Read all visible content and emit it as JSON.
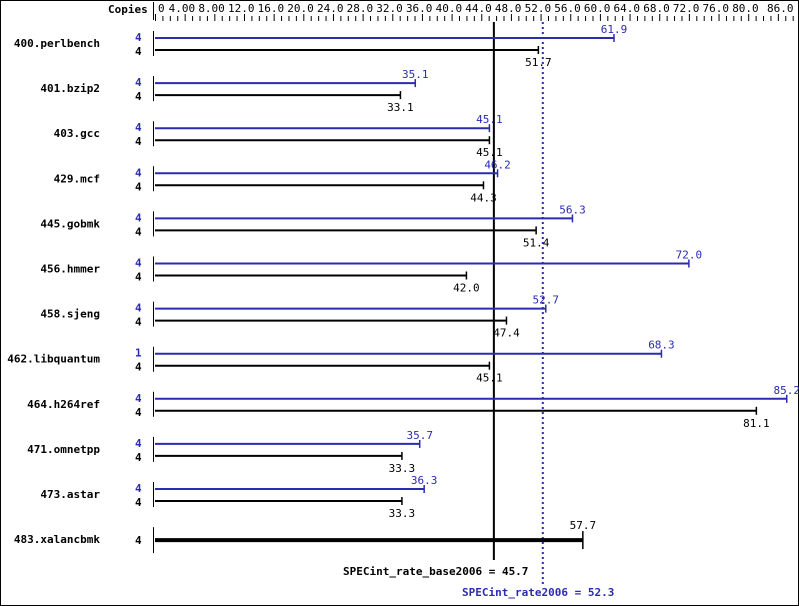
{
  "colors": {
    "peak": "#2b2bb0",
    "base": "#000000",
    "background": "#ffffff"
  },
  "chart_data": {
    "type": "bar",
    "orientation": "horizontal",
    "axis_title": "Copies",
    "xlim": [
      0,
      86.0
    ],
    "tick_labels": [
      "0",
      "4.00",
      "8.00",
      "12.0",
      "16.0",
      "20.0",
      "24.0",
      "28.0",
      "32.0",
      "36.0",
      "40.0",
      "44.0",
      "48.0",
      "52.0",
      "56.0",
      "60.0",
      "64.0",
      "68.0",
      "72.0",
      "76.0",
      "80.0",
      "86.0"
    ],
    "benchmarks": [
      {
        "name": "400.perlbench",
        "peak_copies": "4",
        "peak": 61.9,
        "base_copies": "4",
        "base": 51.7
      },
      {
        "name": "401.bzip2",
        "peak_copies": "4",
        "peak": 35.1,
        "base_copies": "4",
        "base": 33.1
      },
      {
        "name": "403.gcc",
        "peak_copies": "4",
        "peak": 45.1,
        "base_copies": "4",
        "base": 45.1
      },
      {
        "name": "429.mcf",
        "peak_copies": "4",
        "peak": 46.2,
        "base_copies": "4",
        "base": 44.3
      },
      {
        "name": "445.gobmk",
        "peak_copies": "4",
        "peak": 56.3,
        "base_copies": "4",
        "base": 51.4
      },
      {
        "name": "456.hmmer",
        "peak_copies": "4",
        "peak": 72.0,
        "base_copies": "4",
        "base": 42.0
      },
      {
        "name": "458.sjeng",
        "peak_copies": "4",
        "peak": 52.7,
        "base_copies": "4",
        "base": 47.4
      },
      {
        "name": "462.libquantum",
        "peak_copies": "1",
        "peak": 68.3,
        "base_copies": "4",
        "base": 45.1
      },
      {
        "name": "464.h264ref",
        "peak_copies": "4",
        "peak": 85.2,
        "base_copies": "4",
        "base": 81.1
      },
      {
        "name": "471.omnetpp",
        "peak_copies": "4",
        "peak": 35.7,
        "base_copies": "4",
        "base": 33.3
      },
      {
        "name": "473.astar",
        "peak_copies": "4",
        "peak": 36.3,
        "base_copies": "4",
        "base": 33.3
      },
      {
        "name": "483.xalancbmk",
        "peak_copies": null,
        "peak": null,
        "base_copies": "4",
        "base": 57.7
      }
    ],
    "summary": {
      "base_label": "SPECint_rate_base2006 = 45.7",
      "base_value": 45.7,
      "peak_label": "SPECint_rate2006 = 52.3",
      "peak_value": 52.3
    }
  }
}
